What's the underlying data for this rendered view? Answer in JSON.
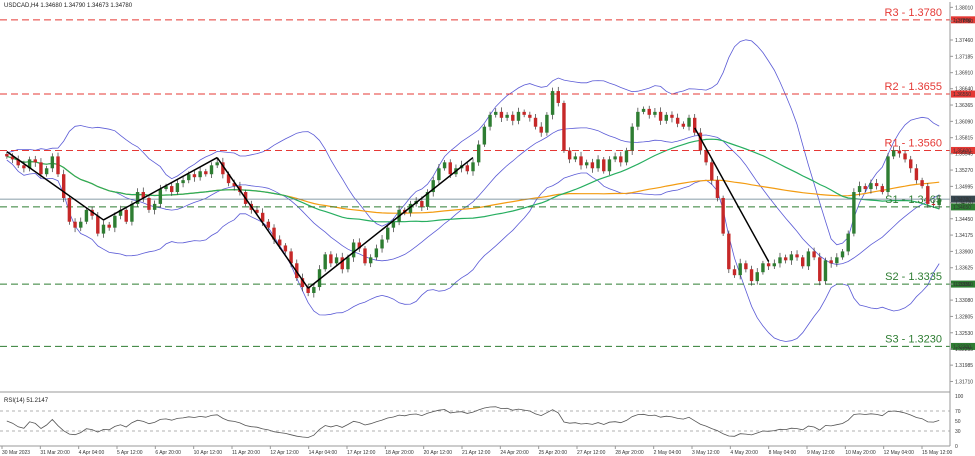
{
  "header": {
    "symbol_line": "USDCAD,H4  1.34680 1.34790 1.34673 1.34780"
  },
  "rsi_header": "RSI(14) 51.2147",
  "colors": {
    "bull": "#2e7d32",
    "bear": "#c62828",
    "wick": "#333333",
    "bollinger": "#5b5bd6",
    "ma_orange": "#f39c12",
    "ma_green": "#27ae60",
    "trendline": "#000000",
    "resistance": "#e53935",
    "support": "#2e7d32",
    "current": "#607d8b",
    "rsi": "#555555"
  },
  "chart_data": {
    "type": "candlestick",
    "symbol": "USDCAD",
    "timeframe": "H4",
    "ohlc_last": {
      "open": 1.3468,
      "high": 1.3479,
      "low": 1.34673,
      "close": 1.3478
    },
    "ylim": [
      1.316,
      1.381
    ],
    "y_ticks": [
      "1.38010",
      "1.37780",
      "1.37460",
      "1.37185",
      "1.36910",
      "1.36640",
      "1.36365",
      "1.36090",
      "1.35815",
      "1.35545",
      "1.35270",
      "1.34995",
      "1.34720",
      "1.34450",
      "1.34175",
      "1.33900",
      "1.33625",
      "1.33350",
      "1.33080",
      "1.32805",
      "1.32530",
      "1.32255",
      "1.31985",
      "1.31710"
    ],
    "x_labels": [
      "30 Mar 2023",
      "31 Mar 20:00",
      "4 Apr 04:00",
      "5 Apr 12:00",
      "6 Apr 20:00",
      "10 Apr 12:00",
      "11 Apr 20:00",
      "12 Apr 12:00",
      "14 Apr 04:00",
      "17 Apr 12:00",
      "18 Apr 20:00",
      "20 Apr 12:00",
      "21 Apr 12:00",
      "24 Apr 20:00",
      "25 Apr 20:00",
      "27 Apr 12:00",
      "28 Apr 20:00",
      "2 May 04:00",
      "3 May 12:00",
      "4 May 20:00",
      "8 May 04:00",
      "9 May 12:00",
      "10 May 20:00",
      "12 May 04:00",
      "15 May 12:00"
    ],
    "levels": [
      {
        "name": "R3",
        "label": "R3 - 1.3780",
        "value": 1.378,
        "kind": "resistance",
        "tag": "1.37800"
      },
      {
        "name": "R2",
        "label": "R2 - 1.3655",
        "value": 1.3655,
        "kind": "resistance",
        "tag": "1.36550"
      },
      {
        "name": "R1",
        "label": "R1 - 1.3560",
        "value": 1.356,
        "kind": "resistance",
        "tag": "1.35600"
      },
      {
        "name": "S1",
        "label": "S1 - 1.3465",
        "value": 1.3465,
        "kind": "support",
        "tag": "1.34650"
      },
      {
        "name": "S2",
        "label": "S2 - 1.3335",
        "value": 1.3335,
        "kind": "support",
        "tag": "1.33350"
      },
      {
        "name": "S3",
        "label": "S3 - 1.3230",
        "value": 1.323,
        "kind": "support",
        "tag": "1.32300"
      }
    ],
    "current_price_tag": "1.34780",
    "close_series": [
      1.355,
      1.3545,
      1.3535,
      1.353,
      1.3545,
      1.354,
      1.352,
      1.353,
      1.355,
      1.352,
      1.348,
      1.344,
      1.343,
      1.344,
      1.346,
      1.345,
      1.342,
      1.3435,
      1.343,
      1.345,
      1.346,
      1.344,
      1.347,
      1.349,
      1.348,
      1.346,
      1.347,
      1.3495,
      1.35,
      1.349,
      1.3505,
      1.351,
      1.352,
      1.3515,
      1.3525,
      1.352,
      1.3535,
      1.354,
      1.352,
      1.3505,
      1.35,
      1.349,
      1.347,
      1.346,
      1.3455,
      1.344,
      1.343,
      1.341,
      1.34,
      1.339,
      1.337,
      1.3345,
      1.333,
      1.332,
      1.333,
      1.336,
      1.3385,
      1.337,
      1.338,
      1.336,
      1.338,
      1.3405,
      1.3395,
      1.337,
      1.338,
      1.3395,
      1.341,
      1.343,
      1.344,
      1.346,
      1.3455,
      1.347,
      1.3475,
      1.3465,
      1.349,
      1.351,
      1.353,
      1.354,
      1.352,
      1.353,
      1.3535,
      1.3525,
      1.354,
      1.357,
      1.36,
      1.362,
      1.3625,
      1.3615,
      1.362,
      1.361,
      1.3625,
      1.362,
      1.3615,
      1.36,
      1.359,
      1.362,
      1.366,
      1.364,
      1.356,
      1.3545,
      1.355,
      1.3535,
      1.354,
      1.353,
      1.3545,
      1.3525,
      1.3545,
      1.355,
      1.354,
      1.356,
      1.36,
      1.3625,
      1.363,
      1.362,
      1.3625,
      1.361,
      1.362,
      1.3615,
      1.3605,
      1.36,
      1.3615,
      1.359,
      1.356,
      1.354,
      1.351,
      1.348,
      1.342,
      1.336,
      1.335,
      1.337,
      1.336,
      1.334,
      1.3355,
      1.337,
      1.3365,
      1.337,
      1.338,
      1.3375,
      1.3385,
      1.338,
      1.3365,
      1.339,
      1.338,
      1.334,
      1.3375,
      1.337,
      1.338,
      1.339,
      1.342,
      1.349,
      1.35,
      1.3495,
      1.3505,
      1.35,
      1.349,
      1.355,
      1.356,
      1.3555,
      1.3545,
      1.353,
      1.351,
      1.35,
      1.347,
      1.3468,
      1.3478
    ],
    "rsi": {
      "value": 51.2147,
      "ylim": [
        0,
        100
      ],
      "ticks": [
        100,
        70,
        50,
        30,
        0
      ]
    },
    "annotations": [
      "trendlines",
      "bollinger bands",
      "moving averages"
    ]
  }
}
